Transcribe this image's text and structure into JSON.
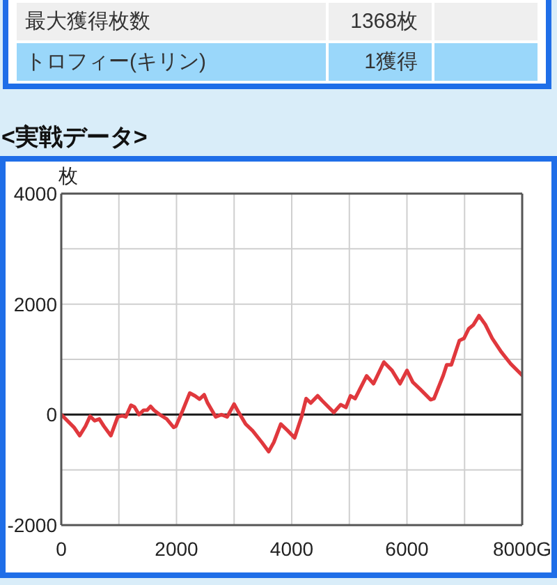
{
  "chart_data": {
    "type": "line",
    "title": "<実戦データ>",
    "ylabel": "枚",
    "annotations": [
      "最大獲得枚数",
      "1368枚",
      "トロフィー(キリン)",
      "1獲得"
    ],
    "x": [
      0,
      220,
      320,
      420,
      500,
      580,
      660,
      740,
      860,
      980,
      1060,
      1120,
      1210,
      1270,
      1350,
      1430,
      1490,
      1550,
      1610,
      1710,
      1830,
      1950,
      1990,
      2110,
      2230,
      2320,
      2400,
      2480,
      2540,
      2680,
      2780,
      2880,
      3000,
      3080,
      3200,
      3320,
      3480,
      3600,
      3690,
      3810,
      3930,
      4050,
      4170,
      4250,
      4330,
      4450,
      4530,
      4730,
      4850,
      4940,
      5020,
      5100,
      5300,
      5420,
      5600,
      5740,
      5880,
      6000,
      6100,
      6230,
      6410,
      6470,
      6630,
      6690,
      6770,
      6910,
      6990,
      7070,
      7150,
      7250,
      7360,
      7480,
      7640,
      7800,
      8000
    ],
    "values": [
      0,
      -230,
      -380,
      -210,
      -30,
      -110,
      -80,
      -210,
      -380,
      -40,
      -20,
      -40,
      170,
      140,
      0,
      80,
      80,
      150,
      80,
      0,
      -80,
      -230,
      -210,
      80,
      390,
      340,
      280,
      360,
      210,
      -40,
      0,
      -40,
      190,
      40,
      -170,
      -290,
      -500,
      -670,
      -500,
      -170,
      -290,
      -420,
      -40,
      290,
      210,
      340,
      250,
      40,
      180,
      130,
      340,
      290,
      700,
      560,
      950,
      800,
      560,
      800,
      590,
      460,
      270,
      290,
      710,
      900,
      900,
      1340,
      1380,
      1550,
      1620,
      1790,
      1630,
      1380,
      1130,
      920,
      710
    ],
    "color": "#e0383d",
    "xlim": [
      0,
      8000
    ],
    "xticks": [
      0,
      {
        "value": 1000,
        "label": null
      },
      2000,
      {
        "value": 3000,
        "label": null
      },
      4000,
      {
        "value": 5000,
        "label": null
      },
      6000,
      {
        "value": 7000,
        "label": null
      },
      {
        "value": 8000,
        "label": "8000G"
      }
    ],
    "ylim": [
      -2000,
      4000
    ],
    "yticks": [
      -2000,
      {
        "value": -1000,
        "label": null
      },
      0,
      {
        "value": 1000,
        "label": null
      },
      2000,
      {
        "value": 3000,
        "label": null
      },
      4000
    ],
    "grid": true,
    "ref_lines": [
      {
        "axis": "y",
        "value": 0,
        "color": "#1a1a1a"
      }
    ]
  }
}
